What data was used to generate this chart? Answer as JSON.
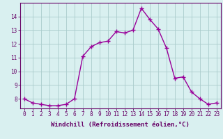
{
  "x": [
    0,
    1,
    2,
    3,
    4,
    5,
    6,
    7,
    8,
    9,
    10,
    11,
    12,
    13,
    14,
    15,
    16,
    17,
    18,
    19,
    20,
    21,
    22,
    23
  ],
  "y": [
    8.0,
    7.7,
    7.6,
    7.5,
    7.5,
    7.6,
    8.0,
    11.1,
    11.8,
    12.1,
    12.2,
    12.9,
    12.8,
    13.0,
    14.6,
    13.8,
    13.1,
    11.7,
    9.5,
    9.6,
    8.5,
    8.0,
    7.6,
    7.7
  ],
  "line_color": "#990099",
  "marker": "+",
  "marker_size": 4,
  "bg_color": "#d9f0f0",
  "grid_color": "#aacccc",
  "xlabel": "Windchill (Refroidissement éolien,°C)",
  "ylabel": "",
  "title": "",
  "xlim": [
    -0.5,
    23.5
  ],
  "ylim": [
    7.3,
    15.0
  ],
  "yticks": [
    8,
    9,
    10,
    11,
    12,
    13,
    14
  ],
  "xticks": [
    0,
    1,
    2,
    3,
    4,
    5,
    6,
    7,
    8,
    9,
    10,
    11,
    12,
    13,
    14,
    15,
    16,
    17,
    18,
    19,
    20,
    21,
    22,
    23
  ],
  "xtick_labels": [
    "0",
    "1",
    "2",
    "3",
    "4",
    "5",
    "6",
    "7",
    "8",
    "9",
    "10",
    "11",
    "12",
    "13",
    "14",
    "15",
    "16",
    "17",
    "18",
    "19",
    "20",
    "21",
    "22",
    "23"
  ],
  "tick_fontsize": 5.5,
  "xlabel_fontsize": 6.5,
  "line_width": 1.0
}
